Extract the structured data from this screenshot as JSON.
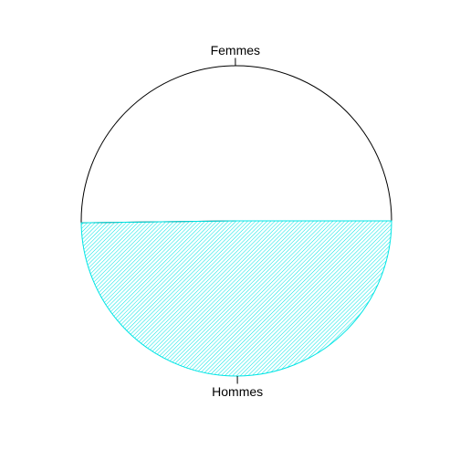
{
  "chart_data": {
    "type": "pie",
    "labels": [
      "Femmes",
      "Hommes"
    ],
    "values": [
      50.2,
      49.8
    ],
    "start_angle_deg": 0,
    "direction": "counterclockwise",
    "colors": [
      "#ffffff",
      "#00ffff"
    ],
    "fill_pattern": [
      "none",
      "diagonal-hatch"
    ],
    "border_color": "#000000",
    "hatch_color": "#00e5e5"
  }
}
